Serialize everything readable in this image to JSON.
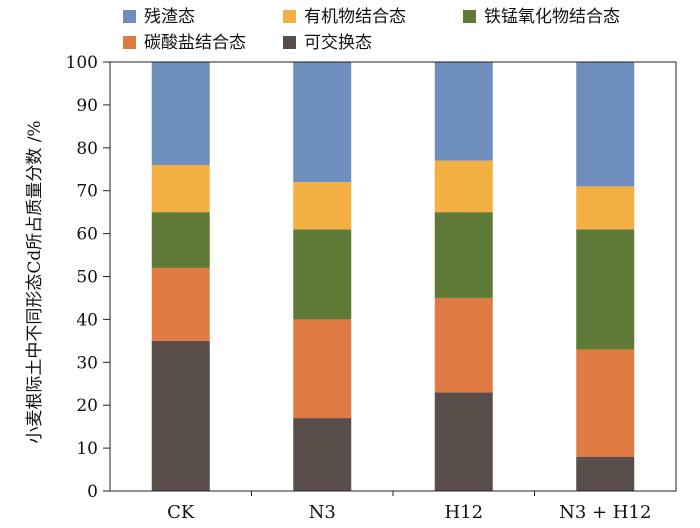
{
  "chart_data": {
    "type": "bar",
    "stacked": true,
    "categories": [
      "CK",
      "N3",
      "H12",
      "N3 + H12"
    ],
    "series": [
      {
        "name": "可交换态",
        "color": "#5a4e4b",
        "values": [
          35,
          17,
          23,
          8
        ]
      },
      {
        "name": "碳酸盐结合态",
        "color": "#e07a43",
        "values": [
          17,
          23,
          22,
          25
        ]
      },
      {
        "name": "铁锰氧化物结合态",
        "color": "#5f7a37",
        "values": [
          13,
          21,
          20,
          28
        ]
      },
      {
        "name": "有机物结合态",
        "color": "#f4b042",
        "values": [
          11,
          11,
          12,
          10
        ]
      },
      {
        "name": "残渣态",
        "color": "#6e8fbd",
        "values": [
          24,
          28,
          23,
          29
        ]
      }
    ],
    "legend_order": [
      "残渣态",
      "有机物结合态",
      "铁锰氧化物结合态",
      "碳酸盐结合态",
      "可交换态"
    ],
    "legend_position": "top",
    "title": "",
    "xlabel": "",
    "ylabel": "小麦根际土中不同形态Cd所占质量分数 /%",
    "ylim": [
      0,
      100
    ],
    "yticks": [
      0,
      10,
      20,
      30,
      40,
      50,
      60,
      70,
      80,
      90,
      100
    ],
    "grid": false
  }
}
